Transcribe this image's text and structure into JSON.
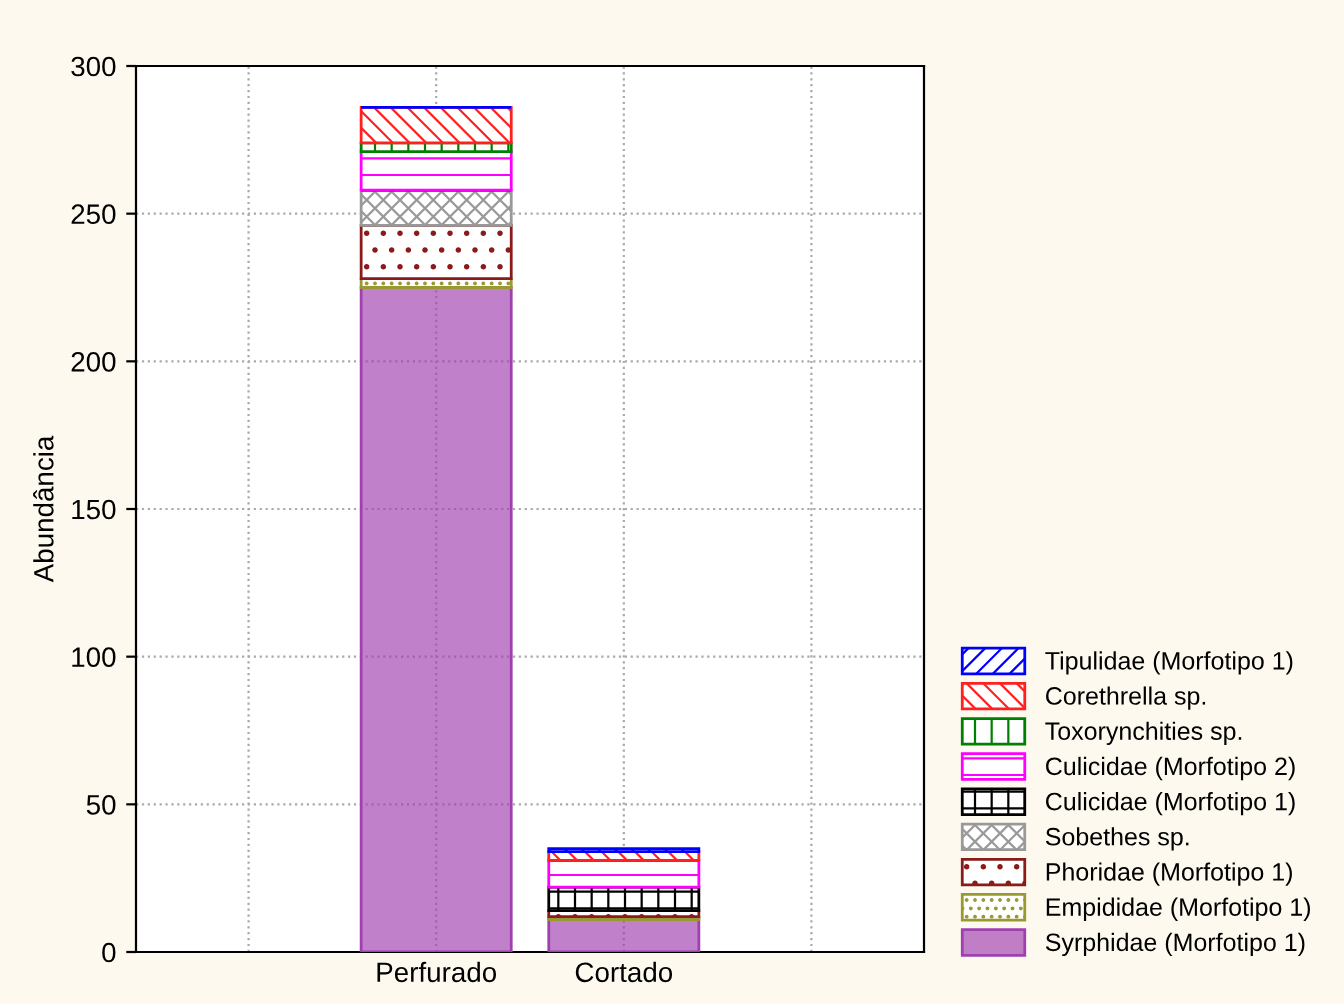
{
  "chart_data": {
    "type": "bar",
    "stacked": true,
    "ylabel": "Abundância",
    "categories": [
      null,
      "Perfurado",
      "Cortado",
      null
    ],
    "ylim": [
      0,
      300
    ],
    "yticks": [
      0,
      50,
      100,
      150,
      200,
      250,
      300
    ],
    "grid": true,
    "legend": "bottom right",
    "series": [
      {
        "name": "Syrphidae (Morfotipo 1)",
        "color": "#a040b0",
        "values": [
          null,
          225,
          11,
          null
        ]
      },
      {
        "name": "Empididae (Morfotipo 1)",
        "color": "#999933",
        "values": [
          null,
          3,
          1,
          null
        ]
      },
      {
        "name": "Phoridae (Morfotipo 1)",
        "color": "#8b1a1a",
        "values": [
          null,
          18,
          2,
          null
        ]
      },
      {
        "name": "Sobethes sp.",
        "color": "#999999",
        "values": [
          null,
          12,
          0,
          null
        ]
      },
      {
        "name": "Culicidae (Morfotipo 1)",
        "color": "#000000",
        "values": [
          null,
          0,
          8,
          null
        ]
      },
      {
        "name": "Culicidae (Morfotipo 2)",
        "color": "#ff00ff",
        "values": [
          null,
          13,
          9,
          null
        ]
      },
      {
        "name": "Toxorynchities sp.",
        "color": "#008000",
        "values": [
          null,
          3,
          0,
          null
        ]
      },
      {
        "name": "Corethrella sp.",
        "color": "#ff2020",
        "values": [
          null,
          12,
          3,
          null
        ]
      },
      {
        "name": "Tipulidae (Morfotipo 1)",
        "color": "#0000ff",
        "values": [
          null,
          0,
          1,
          null
        ]
      }
    ]
  }
}
